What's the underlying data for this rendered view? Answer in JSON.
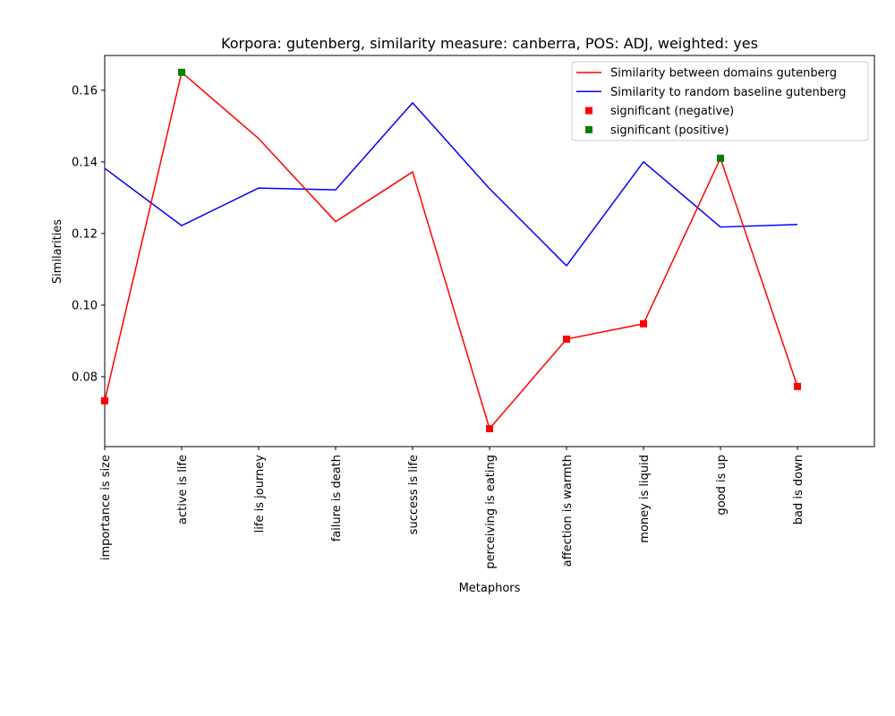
{
  "chart_data": {
    "type": "line",
    "title": "Korpora: gutenberg, similarity measure: canberra, POS: ADJ, weighted: yes",
    "xlabel": "Metaphors",
    "ylabel": "Similarities",
    "categories": [
      "importance is size",
      "active is life",
      "life is journey",
      "failure is death",
      "success is life",
      "perceiving is eating",
      "affection is warmth",
      "money is liquid",
      "good is up",
      "bad is down"
    ],
    "ylim": [
      0.0605,
      0.1697
    ],
    "yticks": [
      "0.08",
      "0.10",
      "0.12",
      "0.14",
      "0.16"
    ],
    "grid": false,
    "legend_position": "top-right",
    "series": [
      {
        "name": "Similarity between domains gutenberg",
        "color": "#ff0000",
        "values": [
          0.0733,
          0.165,
          0.1465,
          0.1233,
          0.1372,
          0.0655,
          0.0905,
          0.0948,
          0.141,
          0.0773
        ]
      },
      {
        "name": "Similarity to random baseline gutenberg",
        "color": "#0000ff",
        "values": [
          0.1382,
          0.1222,
          0.1327,
          0.1322,
          0.1565,
          0.1325,
          0.111,
          0.14,
          0.1218,
          0.1225
        ]
      }
    ],
    "markers": [
      {
        "name": "significant (negative)",
        "color": "#ff0000",
        "indices": [
          0,
          5,
          6,
          7,
          9
        ]
      },
      {
        "name": "significant (positive)",
        "color": "#008000",
        "indices": [
          1,
          8
        ]
      }
    ]
  }
}
